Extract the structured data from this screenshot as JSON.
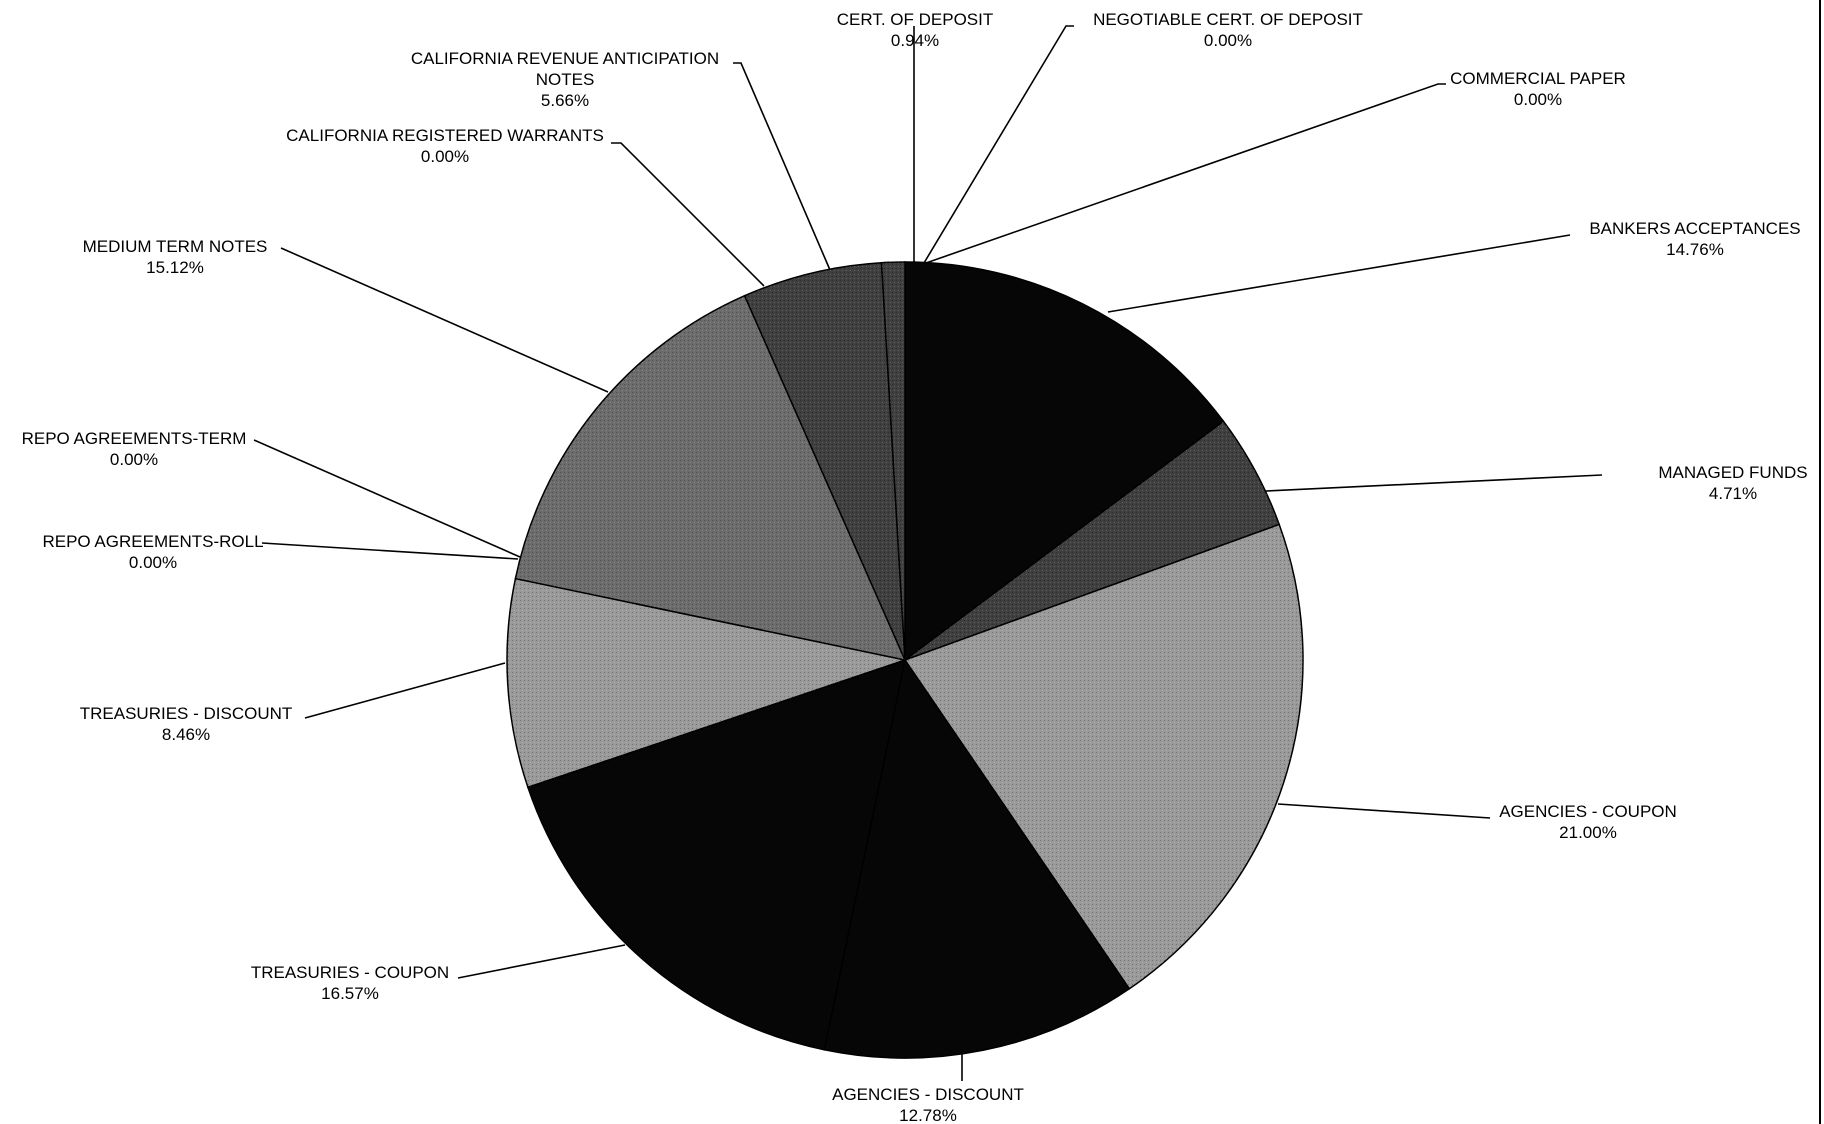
{
  "chart_data": {
    "type": "pie",
    "title": "",
    "legend": "none",
    "colors": {
      "black": "#060606",
      "dark": "#3f3f3f",
      "mid": "#6c6c6c",
      "light": "#9a9a9a"
    },
    "slices": [
      {
        "name": "BANKERS ACCEPTANCES",
        "value_label": "14.76%",
        "value": 14.76,
        "fill": "black"
      },
      {
        "name": "MANAGED FUNDS",
        "value_label": "4.71%",
        "value": 4.71,
        "fill": "dark"
      },
      {
        "name": "AGENCIES - COUPON",
        "value_label": "21.00%",
        "value": 21.0,
        "fill": "light"
      },
      {
        "name": "AGENCIES - DISCOUNT",
        "value_label": "12.78%",
        "value": 12.78,
        "fill": "black"
      },
      {
        "name": "TREASURIES - COUPON",
        "value_label": "16.57%",
        "value": 16.57,
        "fill": "black"
      },
      {
        "name": "TREASURIES - DISCOUNT",
        "value_label": "8.46%",
        "value": 8.46,
        "fill": "light"
      },
      {
        "name": "REPO AGREEMENTS-ROLL",
        "value_label": "0.00%",
        "value": 0.0,
        "fill": "light"
      },
      {
        "name": "REPO AGREEMENTS-TERM",
        "value_label": "0.00%",
        "value": 0.0,
        "fill": "light"
      },
      {
        "name": "MEDIUM TERM NOTES",
        "value_label": "15.12%",
        "value": 15.12,
        "fill": "mid"
      },
      {
        "name": "CALIFORNIA REGISTERED WARRANTS",
        "value_label": "0.00%",
        "value": 0.0,
        "fill": "mid"
      },
      {
        "name": [
          "CALIFORNIA REVENUE ANTICIPATION",
          "NOTES"
        ],
        "value_label": "5.66%",
        "value": 5.66,
        "fill": "dark"
      },
      {
        "name": "CERT. OF DEPOSIT",
        "value_label": "0.94%",
        "value": 0.94,
        "fill": "dark"
      },
      {
        "name": "NEGOTIABLE  CERT. OF DEPOSIT",
        "value_label": "0.00%",
        "value": 0.0,
        "fill": "dark"
      },
      {
        "name": "COMMERCIAL PAPER",
        "value_label": "0.00%",
        "value": 0.0,
        "fill": "dark"
      }
    ]
  }
}
